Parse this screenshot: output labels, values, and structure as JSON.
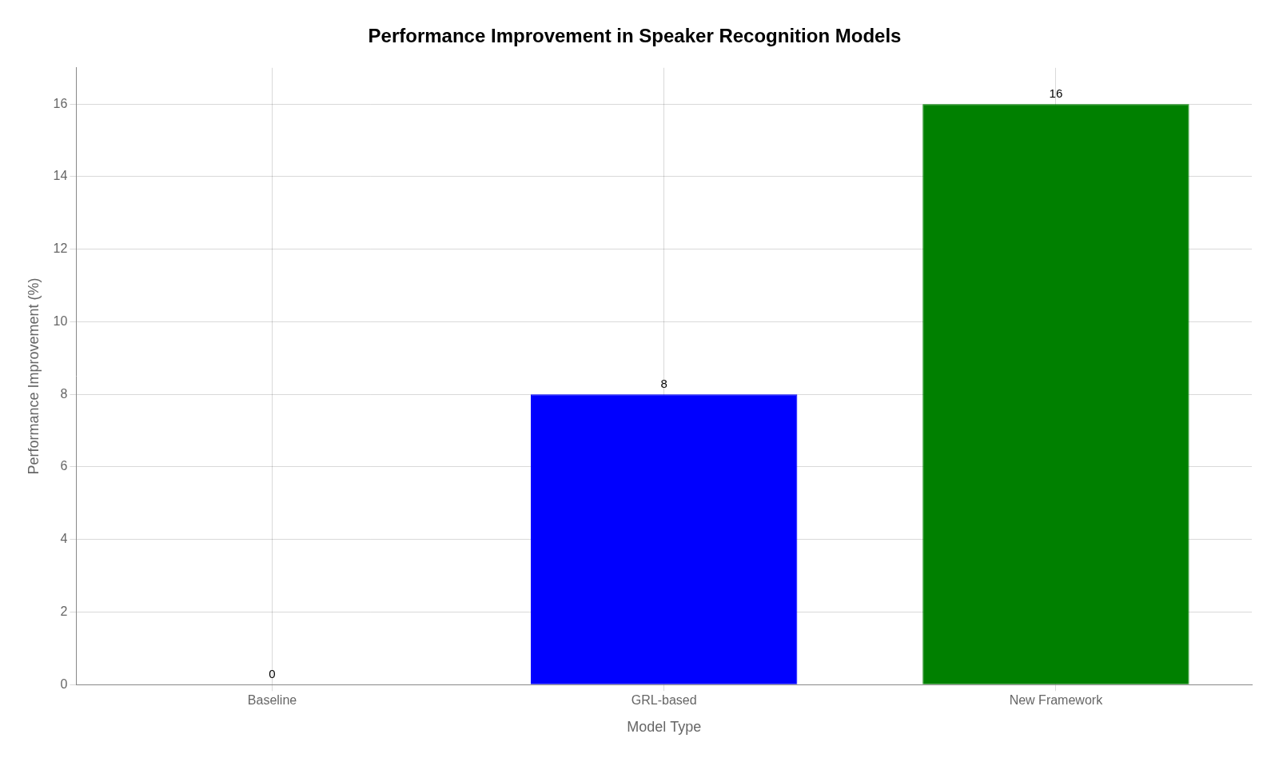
{
  "chart_data": {
    "type": "bar",
    "title": "Performance Improvement in Speaker Recognition Models",
    "xlabel": "Model Type",
    "ylabel": "Performance Improvement (%)",
    "categories": [
      "Baseline",
      "GRL-based",
      "New Framework"
    ],
    "values": [
      0,
      8,
      16
    ],
    "colors": [
      "#cccccc",
      "#0000ff",
      "#008000"
    ],
    "ylim": [
      0,
      17
    ],
    "yticks": [
      0,
      2,
      4,
      6,
      8,
      10,
      12,
      14,
      16
    ],
    "grid": true,
    "data_labels": true
  }
}
